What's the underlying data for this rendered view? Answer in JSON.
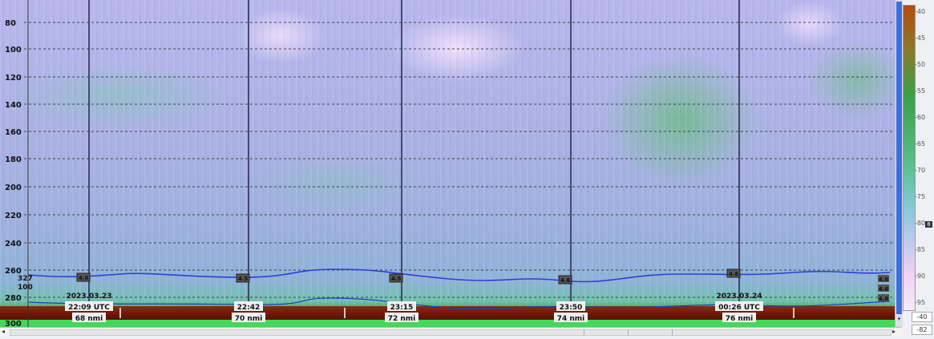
{
  "echogram": {
    "depth_ticks": [
      "80",
      "100",
      "120",
      "140",
      "160",
      "180",
      "200",
      "220",
      "240",
      "260",
      "280",
      "300"
    ],
    "markers": [
      {
        "date": "2023.03.23",
        "time": "22:09 UTC",
        "dist": "68 nmi",
        "badge": "4.6"
      },
      {
        "date": "",
        "time": "22:42",
        "dist": "70 nmi",
        "badge": "4.5"
      },
      {
        "date": "",
        "time": "23:15",
        "dist": "72 nmi",
        "badge": "4.5"
      },
      {
        "date": "",
        "time": "23:50",
        "dist": "74 nmi",
        "badge": "4.6"
      },
      {
        "date": "2023.03.24",
        "time": "00:26 UTC",
        "dist": "76 nmi",
        "badge": "4.6"
      }
    ],
    "left_side_labels": [
      "327",
      "100"
    ],
    "right_edge_badges": [
      "4.6",
      "4.6",
      "4.6"
    ]
  },
  "colorbar": {
    "labels": [
      "-40",
      "-45",
      "-50",
      "-55",
      "-60",
      "-65",
      "-70",
      "-75",
      "-80",
      "-85",
      "-90",
      "-95"
    ],
    "marker": "8",
    "lower_box": "-40",
    "upper_box": "-82"
  },
  "scrollbars": {
    "left_arrow": "◂",
    "right_arrow": "▸",
    "down_arrow": "▾"
  }
}
